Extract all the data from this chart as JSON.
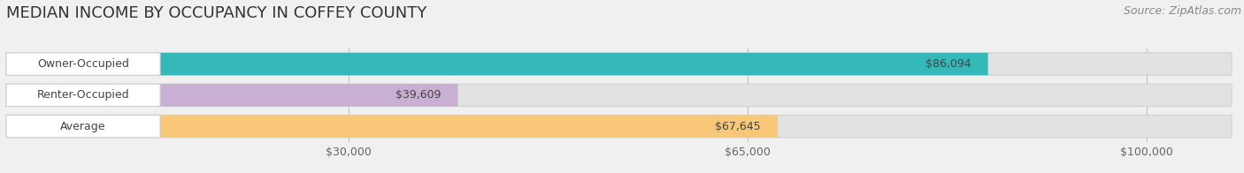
{
  "title": "MEDIAN INCOME BY OCCUPANCY IN COFFEY COUNTY",
  "source": "Source: ZipAtlas.com",
  "categories": [
    "Owner-Occupied",
    "Renter-Occupied",
    "Average"
  ],
  "values": [
    86094,
    39609,
    67645
  ],
  "bar_colors": [
    "#35b8b8",
    "#c9afd4",
    "#f8c878"
  ],
  "value_labels": [
    "$86,094",
    "$39,609",
    "$67,645"
  ],
  "x_ticks": [
    30000,
    65000,
    100000
  ],
  "x_tick_labels": [
    "$30,000",
    "$65,000",
    "$100,000"
  ],
  "xlim": [
    0,
    108000
  ],
  "background_color": "#f0f0f0",
  "bar_background_color": "#e2e2e2",
  "title_fontsize": 13,
  "source_fontsize": 9,
  "label_fontsize": 9,
  "value_fontsize": 9,
  "tick_fontsize": 9,
  "label_bg_color": "#ffffff"
}
